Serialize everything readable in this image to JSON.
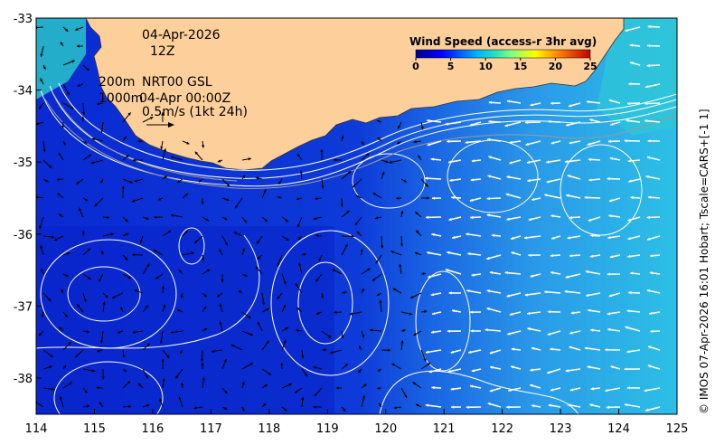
{
  "map": {
    "lon_ticks": [
      "114",
      "115",
      "116",
      "117",
      "118",
      "119",
      "120",
      "121",
      "122",
      "123",
      "124",
      "125"
    ],
    "lat_ticks": [
      "-33",
      "-34",
      "-35",
      "-36",
      "-37",
      "-38"
    ],
    "date_label": "04-Apr-2026",
    "time_label": "12Z",
    "isobath_label": "200m",
    "isobath_label_2": "1000m",
    "altimetry_label": "NRT00 GSL",
    "altimetry_date": "04-Apr 00:00Z",
    "scale_label": "0.5m/s (1kt 24h)",
    "credit": "© IMOS 07-Apr-2026 16:01 Hobart; Tscale=CARS+[-1 1]",
    "colors": {
      "land": "#fdcf9a",
      "deep_ocean": "#0a2ad2",
      "mid_ocean": "#1f6fe6",
      "light_ocean": "#29b3e8"
    }
  },
  "legend": {
    "title": "Wind Speed (access-r 3hr avg)",
    "ticks": [
      "0",
      "5",
      "10",
      "15",
      "20",
      "25"
    ]
  }
}
